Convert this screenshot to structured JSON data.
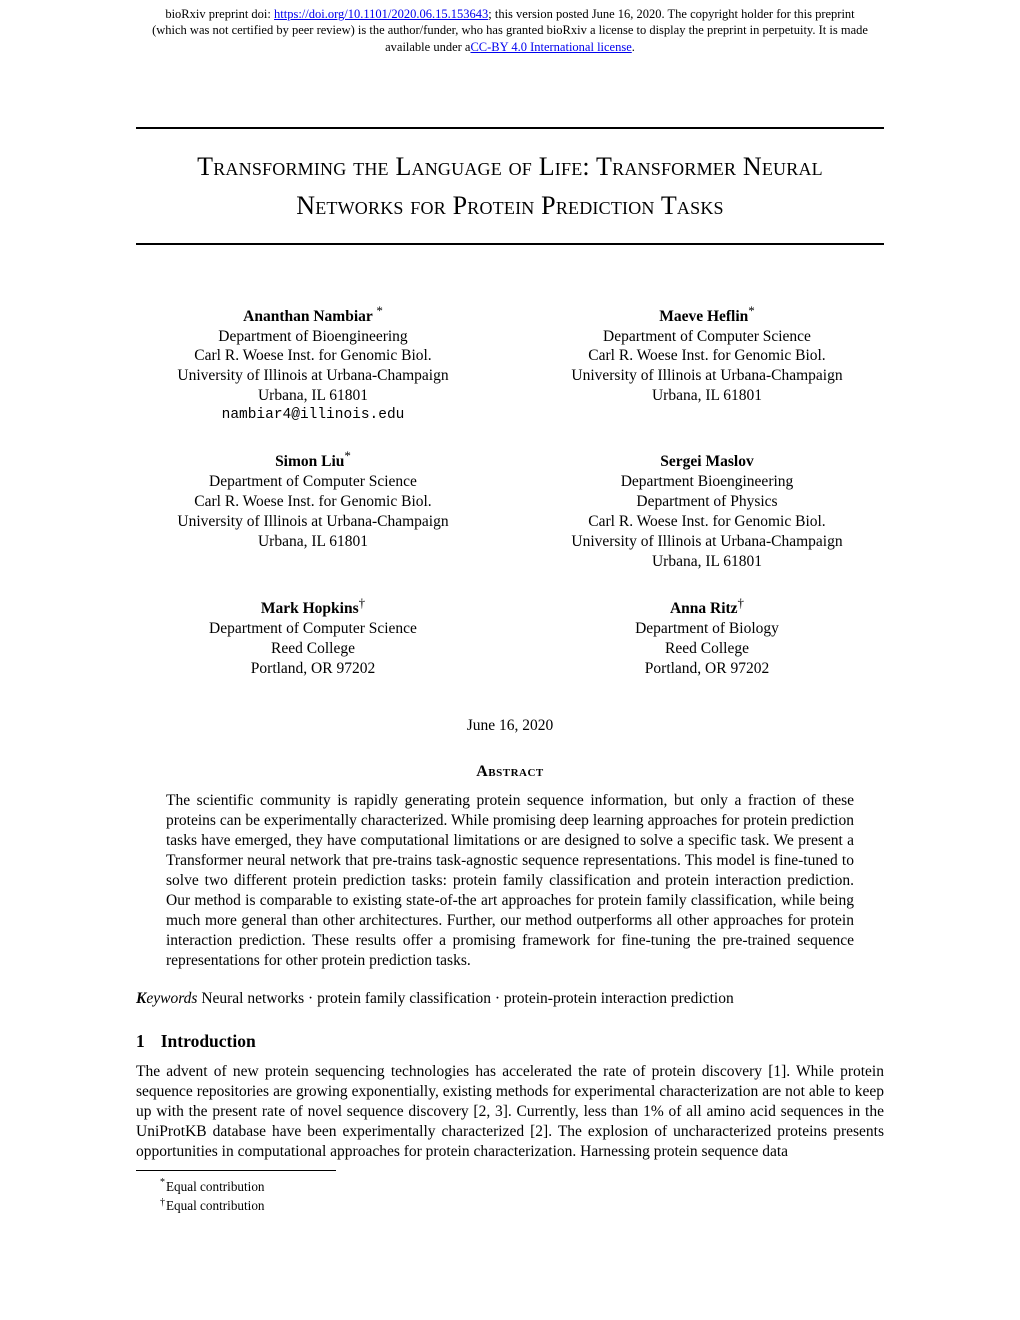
{
  "preprint": {
    "line1_prefix": "bioRxiv preprint doi: ",
    "doi_url": "https://doi.org/10.1101/2020.06.15.153643",
    "line1_suffix": "; this version posted June 16, 2020. The copyright holder for this preprint",
    "line2": "(which was not certified by peer review) is the author/funder, who has granted bioRxiv a license to display the preprint in perpetuity. It is made",
    "line3_prefix": "available under a",
    "license_text": "CC-BY 4.0 International license",
    "line3_suffix": "."
  },
  "title": "Transforming the Language of Life: Transformer Neural Networks for Protein Prediction Tasks",
  "authors": [
    {
      "name": "Ananthan Nambiar ",
      "sup": "*",
      "lines": [
        "Department of Bioengineering",
        "Carl R. Woese Inst. for Genomic Biol.",
        "University of Illinois at Urbana-Champaign",
        "Urbana, IL 61801"
      ],
      "email": "nambiar4@illinois.edu"
    },
    {
      "name": "Maeve Heflin",
      "sup": "*",
      "lines": [
        "Department of Computer Science",
        "Carl R. Woese Inst. for Genomic Biol.",
        "University of Illinois at Urbana-Champaign",
        "Urbana, IL 61801"
      ]
    },
    {
      "name": "Simon Liu",
      "sup": "*",
      "lines": [
        "Department of Computer Science",
        "Carl R. Woese Inst. for Genomic Biol.",
        "University of Illinois at Urbana-Champaign",
        "Urbana, IL 61801"
      ]
    },
    {
      "name": "Sergei Maslov",
      "sup": "",
      "lines": [
        "Department Bioengineering",
        "Department of Physics",
        "Carl R. Woese Inst. for Genomic Biol.",
        "University of Illinois at Urbana-Champaign",
        "Urbana, IL 61801"
      ]
    },
    {
      "name": "Mark Hopkins",
      "sup": "†",
      "lines": [
        "Department of Computer Science",
        "Reed College",
        "Portland, OR 97202"
      ]
    },
    {
      "name": "Anna Ritz",
      "sup": "†",
      "lines": [
        "Department of Biology",
        "Reed College",
        "Portland, OR 97202"
      ]
    }
  ],
  "date": "June 16, 2020",
  "abstract_heading": "Abstract",
  "abstract": "The scientific community is rapidly generating protein sequence information, but only a fraction of these proteins can be experimentally characterized. While promising deep learning approaches for protein prediction tasks have emerged, they have computational limitations or are designed to solve a specific task. We present a Transformer neural network that pre-trains task-agnostic sequence representations. This model is fine-tuned to solve two different protein prediction tasks: protein family classification and protein interaction prediction. Our method is comparable to existing state-of-the art approaches for protein family classification, while being much more general than other architectures. Further, our method outperforms all other approaches for protein interaction prediction. These results offer a promising framework for fine-tuning the pre-trained sequence representations for other protein prediction tasks.",
  "keywords": {
    "label_bold": "K",
    "label_rest": "eywords",
    "text": "  Neural networks · protein family classification · protein-protein interaction prediction"
  },
  "section": {
    "num": "1",
    "title": "Introduction"
  },
  "intro": "The advent of new protein sequencing technologies has accelerated the rate of protein discovery [1]. While protein sequence repositories are growing exponentially, existing methods for experimental characterization are not able to keep up with the present rate of novel sequence discovery [2, 3]. Currently, less than 1% of all amino acid sequences in the UniProtKB database have been experimentally characterized [2]. The explosion of uncharacterized proteins presents opportunities in computational approaches for protein characterization. Harnessing protein sequence data",
  "footnotes": [
    {
      "mark": "*",
      "text": "Equal contribution"
    },
    {
      "mark": "†",
      "text": "Equal contribution"
    }
  ],
  "colors": {
    "link": "#0000ee",
    "text": "#000000",
    "background": "#ffffff"
  }
}
